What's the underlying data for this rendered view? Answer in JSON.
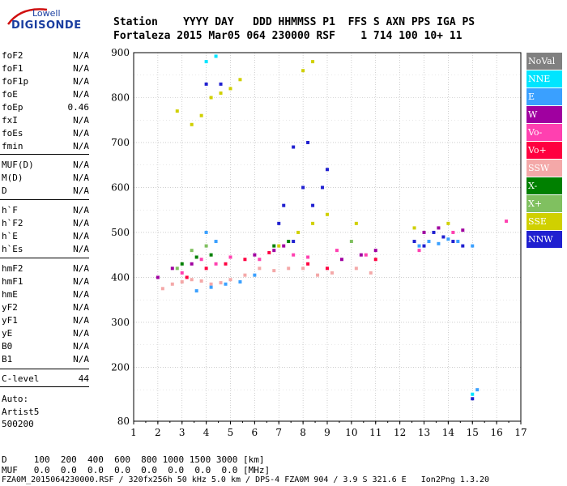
{
  "logo": {
    "top_text": "Lowell",
    "bottom_text": "DIGISONDE"
  },
  "header": {
    "labels": "Station    YYYY DAY   DDD HHMMSS P1  FFS S AXN PPS IGA PS",
    "values": "Fortaleza 2015 Mar05 064 230000 RSF    1 714 100 10+ 11"
  },
  "params": [
    {
      "k": "foF2",
      "v": "N/A"
    },
    {
      "k": "foF1",
      "v": "N/A"
    },
    {
      "k": "foF1p",
      "v": "N/A"
    },
    {
      "k": "foE",
      "v": "N/A"
    },
    {
      "k": "foEp",
      "v": "0.46"
    },
    {
      "k": "fxI",
      "v": "N/A"
    },
    {
      "k": "foEs",
      "v": "N/A"
    },
    {
      "k": "fmin",
      "v": "N/A"
    },
    {
      "k": "MUF(D)",
      "v": "N/A"
    },
    {
      "k": "M(D)",
      "v": "N/A"
    },
    {
      "k": "D",
      "v": "N/A"
    },
    {
      "k": "h`F",
      "v": "N/A"
    },
    {
      "k": "h`F2",
      "v": "N/A"
    },
    {
      "k": "h`E",
      "v": "N/A"
    },
    {
      "k": "h`Es",
      "v": "N/A"
    },
    {
      "k": "hmF2",
      "v": "N/A"
    },
    {
      "k": "hmF1",
      "v": "N/A"
    },
    {
      "k": "hmE",
      "v": "N/A"
    },
    {
      "k": "yF2",
      "v": "N/A"
    },
    {
      "k": "yF1",
      "v": "N/A"
    },
    {
      "k": "yE",
      "v": "N/A"
    },
    {
      "k": "B0",
      "v": "N/A"
    },
    {
      "k": "B1",
      "v": "N/A"
    },
    {
      "k": "C-level",
      "v": "44"
    }
  ],
  "auto": {
    "label": "Auto:",
    "artist": "Artist5",
    "version": "500200"
  },
  "footer": {
    "d_row": "D     100  200  400  600  800 1000 1500 3000 [km]",
    "muf_row": "MUF   0.0  0.0  0.0  0.0  0.0  0.0  0.0  0.0 [MHz]",
    "file_row": "FZA0M_2015064230000.RSF / 320fx256h 50 kHz 5.0 km / DPS-4 FZA0M 904 / 3.9 S 321.6 E   Ion2Png 1.3.20"
  },
  "legend": [
    {
      "label": "NoVal",
      "color": "#808080"
    },
    {
      "label": "NNE",
      "color": "#00e5ff"
    },
    {
      "label": "E",
      "color": "#3aa0ff"
    },
    {
      "label": "W",
      "color": "#a000a0"
    },
    {
      "label": "Vo-",
      "color": "#ff40b0"
    },
    {
      "label": "Vo+",
      "color": "#ff0040"
    },
    {
      "label": "SSW",
      "color": "#f4a8a8"
    },
    {
      "label": "X-",
      "color": "#008000"
    },
    {
      "label": "X+",
      "color": "#80c060"
    },
    {
      "label": "SSE",
      "color": "#d0d000"
    },
    {
      "label": "NNW",
      "color": "#2020d0"
    }
  ],
  "chart_data": {
    "type": "scatter",
    "title": "",
    "xlabel": "",
    "ylabel": "",
    "xlim": [
      1,
      17
    ],
    "ylim": [
      80,
      900
    ],
    "x_ticks": [
      1,
      2,
      3,
      4,
      5,
      6,
      7,
      8,
      9,
      10,
      11,
      12,
      13,
      14,
      15,
      16,
      17
    ],
    "y_ticks": [
      80,
      200,
      300,
      400,
      500,
      600,
      700,
      800,
      900
    ],
    "grid": true,
    "legend_placement": "right",
    "series": [
      {
        "name": "SSW",
        "points": [
          [
            2.2,
            375
          ],
          [
            2.6,
            385
          ],
          [
            3.0,
            390
          ],
          [
            3.4,
            395
          ],
          [
            3.8,
            392
          ],
          [
            4.2,
            385
          ],
          [
            4.6,
            388
          ],
          [
            5.0,
            395
          ],
          [
            5.6,
            405
          ],
          [
            6.2,
            420
          ],
          [
            6.8,
            415
          ],
          [
            7.4,
            420
          ],
          [
            8.0,
            420
          ],
          [
            8.6,
            405
          ],
          [
            9.2,
            410
          ],
          [
            10.2,
            420
          ],
          [
            10.8,
            410
          ]
        ]
      },
      {
        "name": "E",
        "points": [
          [
            3.6,
            370
          ],
          [
            4.2,
            378
          ],
          [
            4.8,
            385
          ],
          [
            5.4,
            390
          ],
          [
            6.0,
            405
          ],
          [
            4.0,
            500
          ],
          [
            4.4,
            480
          ],
          [
            12.8,
            470
          ],
          [
            13.2,
            480
          ],
          [
            13.6,
            475
          ],
          [
            14.0,
            485
          ],
          [
            14.4,
            480
          ],
          [
            15.0,
            470
          ],
          [
            15.2,
            150
          ]
        ]
      },
      {
        "name": "NNW",
        "points": [
          [
            7.0,
            520
          ],
          [
            7.2,
            560
          ],
          [
            7.6,
            480
          ],
          [
            8.0,
            600
          ],
          [
            8.4,
            560
          ],
          [
            8.8,
            600
          ],
          [
            9.0,
            640
          ],
          [
            8.2,
            700
          ],
          [
            7.6,
            690
          ],
          [
            12.6,
            480
          ],
          [
            13.0,
            470
          ],
          [
            13.4,
            500
          ],
          [
            13.8,
            490
          ],
          [
            14.2,
            480
          ],
          [
            14.6,
            470
          ],
          [
            4.0,
            830
          ],
          [
            4.6,
            830
          ],
          [
            15.0,
            130
          ]
        ]
      },
      {
        "name": "SSE",
        "points": [
          [
            3.4,
            740
          ],
          [
            3.8,
            760
          ],
          [
            4.2,
            800
          ],
          [
            4.6,
            810
          ],
          [
            5.0,
            820
          ],
          [
            5.4,
            840
          ],
          [
            8.0,
            860
          ],
          [
            8.4,
            880
          ],
          [
            7.0,
            470
          ],
          [
            7.8,
            500
          ],
          [
            8.4,
            520
          ],
          [
            9.0,
            540
          ],
          [
            10.2,
            520
          ],
          [
            12.6,
            510
          ],
          [
            14.0,
            520
          ],
          [
            2.8,
            770
          ]
        ]
      },
      {
        "name": "W",
        "points": [
          [
            2.0,
            400
          ],
          [
            2.6,
            420
          ],
          [
            3.4,
            430
          ],
          [
            6.0,
            450
          ],
          [
            6.8,
            460
          ],
          [
            7.2,
            470
          ],
          [
            9.6,
            440
          ],
          [
            10.4,
            450
          ],
          [
            11.0,
            460
          ],
          [
            13.0,
            500
          ],
          [
            13.6,
            510
          ],
          [
            14.6,
            505
          ]
        ]
      },
      {
        "name": "Vo-",
        "points": [
          [
            3.0,
            410
          ],
          [
            3.8,
            440
          ],
          [
            4.4,
            430
          ],
          [
            5.0,
            445
          ],
          [
            6.2,
            440
          ],
          [
            7.6,
            450
          ],
          [
            8.2,
            445
          ],
          [
            9.4,
            460
          ],
          [
            10.6,
            450
          ],
          [
            12.8,
            460
          ],
          [
            14.2,
            500
          ],
          [
            16.4,
            525
          ]
        ]
      },
      {
        "name": "Vo+",
        "points": [
          [
            3.2,
            400
          ],
          [
            4.0,
            420
          ],
          [
            4.8,
            430
          ],
          [
            5.6,
            440
          ],
          [
            6.6,
            455
          ],
          [
            8.2,
            430
          ],
          [
            9.0,
            420
          ],
          [
            11.0,
            440
          ]
        ]
      },
      {
        "name": "X-",
        "points": [
          [
            3.0,
            430
          ],
          [
            3.6,
            445
          ],
          [
            4.2,
            450
          ],
          [
            6.8,
            470
          ],
          [
            7.4,
            480
          ]
        ]
      },
      {
        "name": "X+",
        "points": [
          [
            2.8,
            420
          ],
          [
            3.4,
            460
          ],
          [
            4.0,
            470
          ],
          [
            10.0,
            480
          ]
        ]
      },
      {
        "name": "NNE",
        "points": [
          [
            4.0,
            880
          ],
          [
            4.4,
            892
          ],
          [
            15.0,
            140
          ]
        ]
      }
    ]
  }
}
